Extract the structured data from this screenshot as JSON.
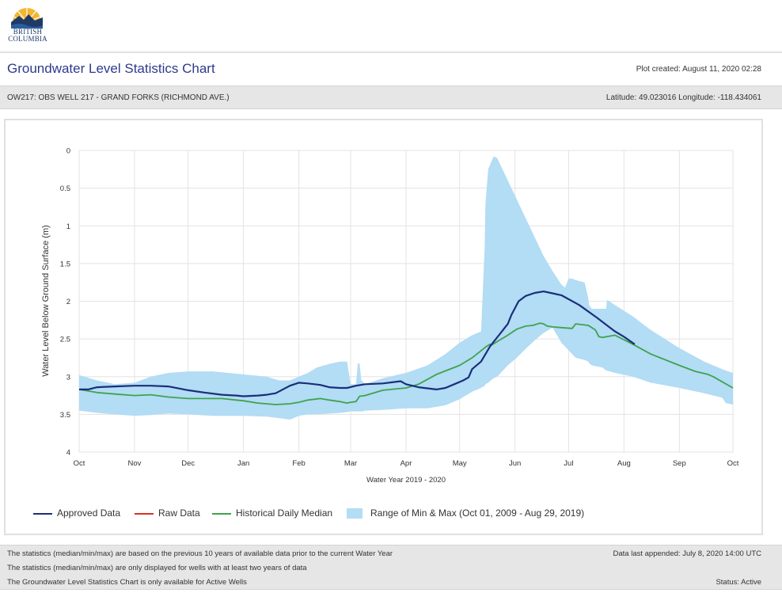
{
  "logo": {
    "name": "British Columbia",
    "line1": "BRITISH",
    "line2": "COLUMBIA"
  },
  "header": {
    "title": "Groundwater Level Statistics Chart",
    "plot_created": "Plot created: August 11, 2020 02:28"
  },
  "well": {
    "name": "OW217: OBS WELL 217 - GRAND FORKS (RICHMOND AVE.)",
    "location": "Latitude: 49.023016 Longitude: -118.434061"
  },
  "legend": {
    "items": [
      {
        "label": "Approved Data",
        "color": "#1a2f7a",
        "kind": "line"
      },
      {
        "label": "Raw Data",
        "color": "#d9302c",
        "kind": "line"
      },
      {
        "label": "Historical Daily Median",
        "color": "#3fa34d",
        "kind": "line"
      },
      {
        "label": "Range of Min & Max (Oct 01, 2009 - Aug 29, 2019)",
        "color": "#b3dcf5",
        "kind": "area"
      }
    ]
  },
  "footer": {
    "notes": [
      "The statistics (median/min/max) are based on the previous 10 years of available data prior to the current Water Year",
      "The statistics (median/min/max) are only displayed for wells with at least two years of data",
      "The Groundwater Level Statistics Chart is only available for Active Wells"
    ],
    "last_appended": "Data last appended: July 8, 2020 14:00 UTC",
    "status": "Status: Active"
  },
  "chart_data": {
    "type": "line",
    "title": "",
    "xlabel": "Water Year 2019 - 2020",
    "ylabel": "Water Level Below Ground Surface (m)",
    "y_inverted": true,
    "ylim": [
      0,
      4
    ],
    "yticks": [
      0,
      0.5,
      1,
      1.5,
      2,
      2.5,
      3,
      3.5,
      4
    ],
    "ytick_labels": [
      "0",
      "0.5",
      "1",
      "1.5",
      "2",
      "2.5",
      "3",
      "3.5",
      "4"
    ],
    "xlim_days": [
      0,
      366
    ],
    "x_unit": "days since Oct 01",
    "xticks": [
      0,
      31,
      61,
      92,
      123,
      152,
      183,
      213,
      244,
      274,
      305,
      336,
      366
    ],
    "xtick_labels": [
      "Oct",
      "Nov",
      "Dec",
      "Jan",
      "Feb",
      "Mar",
      "Apr",
      "May",
      "Jun",
      "Jul",
      "Aug",
      "Sep",
      "Oct"
    ],
    "grid": true,
    "legend_position": "bottom",
    "series": [
      {
        "name": "Range of Min & Max (Oct 01, 2009 - Aug 29, 2019)",
        "kind": "area",
        "color": "#b3dcf5",
        "x": [
          0,
          10,
          20,
          31,
          40,
          50,
          61,
          75,
          92,
          105,
          112,
          118,
          123,
          128,
          133,
          140,
          146,
          150,
          152,
          155,
          156,
          157,
          158,
          159,
          160,
          170,
          183,
          195,
          205,
          213,
          220,
          225,
          227,
          227.5,
          229,
          232,
          234,
          236,
          240,
          245,
          250,
          255,
          260,
          265,
          270,
          272,
          274,
          276,
          278,
          283,
          285,
          285.5,
          287,
          293,
          295,
          295.5,
          300,
          310,
          320,
          336,
          350,
          360,
          362,
          366
        ],
        "max": [
          2.98,
          3.05,
          3.1,
          3.08,
          3.0,
          2.95,
          2.93,
          2.93,
          2.97,
          3.0,
          3.05,
          3.05,
          3.0,
          2.95,
          2.88,
          2.83,
          2.8,
          2.8,
          3.1,
          3.1,
          2.82,
          2.83,
          3.05,
          3.07,
          3.1,
          3.02,
          2.95,
          2.85,
          2.7,
          2.55,
          2.45,
          2.4,
          1.3,
          0.7,
          0.25,
          0.08,
          0.1,
          0.2,
          0.4,
          0.65,
          0.9,
          1.15,
          1.4,
          1.6,
          1.78,
          1.82,
          1.7,
          1.7,
          1.72,
          1.75,
          1.96,
          2.05,
          2.1,
          2.1,
          2.1,
          1.98,
          2.05,
          2.2,
          2.38,
          2.62,
          2.8,
          2.9,
          2.92,
          2.95
        ],
        "min": [
          3.45,
          3.48,
          3.5,
          3.52,
          3.51,
          3.49,
          3.5,
          3.52,
          3.52,
          3.53,
          3.55,
          3.57,
          3.52,
          3.5,
          3.5,
          3.49,
          3.48,
          3.47,
          3.46,
          3.46,
          3.46,
          3.46,
          3.46,
          3.46,
          3.45,
          3.44,
          3.42,
          3.42,
          3.38,
          3.3,
          3.2,
          3.15,
          3.12,
          3.1,
          3.08,
          3.02,
          3.0,
          2.95,
          2.85,
          2.75,
          2.63,
          2.52,
          2.42,
          2.35,
          2.55,
          2.6,
          2.65,
          2.7,
          2.75,
          2.78,
          2.8,
          2.82,
          2.85,
          2.88,
          2.92,
          2.92,
          2.95,
          3.0,
          3.08,
          3.15,
          3.22,
          3.28,
          3.35,
          3.37
        ]
      },
      {
        "name": "Historical Daily Median",
        "kind": "line",
        "color": "#3fa34d",
        "x": [
          0,
          10,
          20,
          31,
          40,
          50,
          61,
          70,
          80,
          88,
          92,
          100,
          110,
          118,
          123,
          128,
          135,
          140,
          146,
          150,
          152,
          155,
          157,
          160,
          170,
          183,
          190,
          200,
          213,
          220,
          228,
          230,
          231,
          235,
          240,
          245,
          250,
          254,
          258,
          260,
          262,
          265,
          270,
          276,
          278,
          285,
          287,
          289,
          291,
          293,
          300,
          310,
          320,
          336,
          345,
          352,
          355,
          366
        ],
        "y": [
          3.17,
          3.21,
          3.23,
          3.25,
          3.24,
          3.27,
          3.29,
          3.29,
          3.29,
          3.31,
          3.32,
          3.35,
          3.37,
          3.36,
          3.34,
          3.31,
          3.29,
          3.31,
          3.33,
          3.35,
          3.34,
          3.33,
          3.26,
          3.25,
          3.18,
          3.15,
          3.1,
          2.97,
          2.85,
          2.75,
          2.6,
          2.57,
          2.58,
          2.52,
          2.45,
          2.37,
          2.33,
          2.32,
          2.29,
          2.3,
          2.33,
          2.34,
          2.35,
          2.36,
          2.3,
          2.32,
          2.35,
          2.38,
          2.47,
          2.48,
          2.45,
          2.57,
          2.7,
          2.85,
          2.93,
          2.97,
          3.0,
          3.15
        ]
      },
      {
        "name": "Approved Data",
        "kind": "line",
        "color": "#1a2f7a",
        "x": [
          0,
          5,
          10,
          20,
          31,
          40,
          50,
          61,
          70,
          80,
          88,
          92,
          100,
          105,
          110,
          118,
          123,
          128,
          135,
          140,
          146,
          150,
          155,
          160,
          170,
          180,
          183,
          190,
          200,
          205,
          210,
          215,
          218,
          220,
          225,
          230,
          236,
          240,
          242,
          246,
          250,
          255,
          260,
          264,
          270,
          280,
          290,
          300,
          305,
          311
        ],
        "y": [
          3.17,
          3.17,
          3.14,
          3.13,
          3.12,
          3.12,
          3.13,
          3.18,
          3.21,
          3.24,
          3.25,
          3.26,
          3.25,
          3.24,
          3.22,
          3.12,
          3.08,
          3.09,
          3.11,
          3.14,
          3.15,
          3.15,
          3.12,
          3.1,
          3.09,
          3.06,
          3.1,
          3.14,
          3.17,
          3.15,
          3.1,
          3.05,
          3.01,
          2.9,
          2.8,
          2.6,
          2.42,
          2.3,
          2.18,
          2.0,
          1.93,
          1.89,
          1.87,
          1.89,
          1.92,
          2.05,
          2.22,
          2.4,
          2.47,
          2.57
        ]
      },
      {
        "name": "Raw Data",
        "kind": "line",
        "color": "#d9302c",
        "x": [],
        "y": []
      }
    ]
  }
}
